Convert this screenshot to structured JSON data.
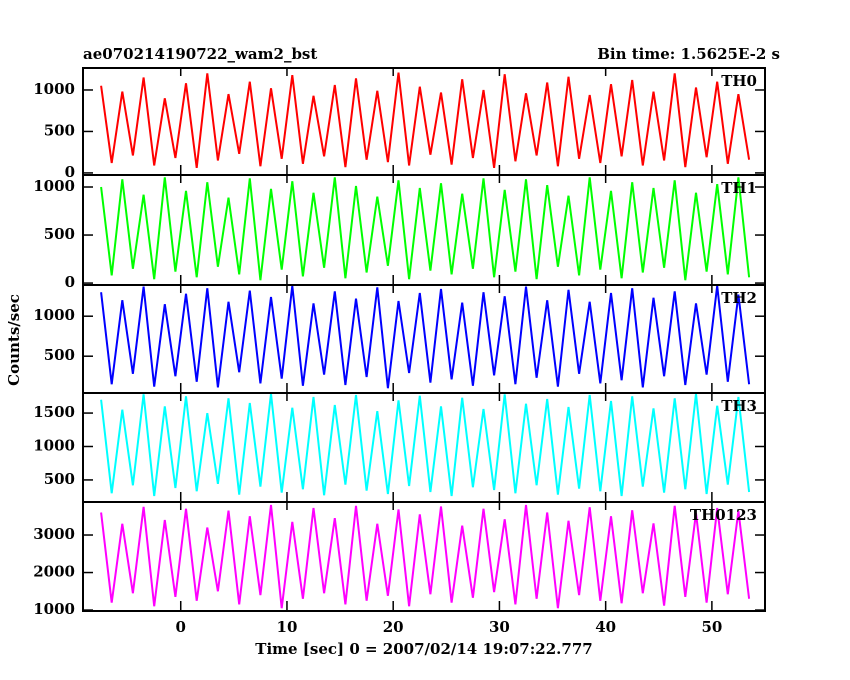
{
  "chart_data": {
    "type": "line",
    "title": "ae070214190722_wam2_bst",
    "subtitle": "Bin time: 1.5625E-2 s",
    "xlabel": "Time [sec] 0 = 2007/02/14 19:07:22.777",
    "ylabel": "Counts/sec",
    "xlim": [
      -9.2,
      55
    ],
    "xticks": [
      0,
      10,
      20,
      30,
      40,
      50
    ],
    "x": [
      -7.5,
      -6.5,
      -5.5,
      -4.5,
      -3.5,
      -2.5,
      -1.5,
      -0.5,
      0.5,
      1.5,
      2.5,
      3.5,
      4.5,
      5.5,
      6.5,
      7.5,
      8.5,
      9.5,
      10.5,
      11.5,
      12.5,
      13.5,
      14.5,
      15.5,
      16.5,
      17.5,
      18.5,
      19.5,
      20.5,
      21.5,
      22.5,
      23.5,
      24.5,
      25.5,
      26.5,
      27.5,
      28.5,
      29.5,
      30.5,
      31.5,
      32.5,
      33.5,
      34.5,
      35.5,
      36.5,
      37.5,
      38.5,
      39.5,
      40.5,
      41.5,
      42.5,
      43.5,
      44.5,
      45.5,
      46.5,
      47.5,
      48.5,
      49.5,
      50.5,
      51.5,
      52.5,
      53.5
    ],
    "series": [
      {
        "name": "TH0",
        "color": "#ff0000",
        "ylim": [
          -25,
          1265
        ],
        "yticks": [
          0,
          500,
          1000
        ],
        "values": [
          1050,
          120,
          980,
          210,
          1150,
          90,
          900,
          180,
          1080,
          60,
          1200,
          150,
          950,
          230,
          1100,
          80,
          1020,
          170,
          1180,
          110,
          930,
          200,
          1060,
          70,
          1140,
          160,
          990,
          130,
          1210,
          90,
          1040,
          220,
          970,
          100,
          1130,
          180,
          1000,
          60,
          1190,
          140,
          960,
          210,
          1090,
          80,
          1160,
          170,
          940,
          120,
          1070,
          200,
          1120,
          90,
          980,
          150,
          1200,
          70,
          1030,
          190,
          1100,
          110,
          950,
          160
        ]
      },
      {
        "name": "TH1",
        "color": "#00ff00",
        "ylim": [
          -20,
          1125
        ],
        "yticks": [
          0,
          500,
          1000
        ],
        "values": [
          1000,
          80,
          1080,
          150,
          920,
          40,
          1100,
          120,
          960,
          60,
          1050,
          170,
          890,
          90,
          1090,
          30,
          980,
          140,
          1060,
          70,
          940,
          160,
          1100,
          50,
          1010,
          110,
          900,
          180,
          1070,
          40,
          990,
          130,
          1040,
          90,
          930,
          150,
          1090,
          60,
          970,
          120,
          1080,
          40,
          1020,
          170,
          910,
          80,
          1100,
          140,
          960,
          50,
          1050,
          110,
          990,
          160,
          1070,
          30,
          940,
          120,
          1030,
          90,
          1100,
          60
        ]
      },
      {
        "name": "TH2",
        "color": "#0000ff",
        "ylim": [
          40,
          1390
        ],
        "yticks": [
          500,
          1000
        ],
        "values": [
          1300,
          150,
          1200,
          280,
          1370,
          120,
          1150,
          250,
          1280,
          180,
          1350,
          110,
          1180,
          300,
          1320,
          160,
          1240,
          220,
          1380,
          130,
          1160,
          270,
          1310,
          140,
          1220,
          240,
          1360,
          100,
          1190,
          290,
          1290,
          170,
          1340,
          210,
          1170,
          130,
          1300,
          260,
          1250,
          150,
          1370,
          230,
          1200,
          120,
          1330,
          280,
          1180,
          160,
          1290,
          200,
          1350,
          110,
          1230,
          250,
          1310,
          140,
          1160,
          270,
          1380,
          180,
          1270,
          150
        ]
      },
      {
        "name": "TH3",
        "color": "#00ffff",
        "ylim": [
          170,
          1800
        ],
        "yticks": [
          500,
          1000,
          1500
        ],
        "values": [
          1700,
          300,
          1550,
          420,
          1780,
          260,
          1600,
          380,
          1750,
          330,
          1500,
          440,
          1720,
          280,
          1650,
          400,
          1790,
          310,
          1580,
          360,
          1740,
          270,
          1620,
          430,
          1770,
          340,
          1530,
          290,
          1690,
          410,
          1760,
          320,
          1600,
          260,
          1730,
          390,
          1560,
          350,
          1780,
          300,
          1640,
          420,
          1710,
          280,
          1590,
          370,
          1770,
          330,
          1680,
          260,
          1750,
          400,
          1570,
          310,
          1720,
          360,
          1790,
          290,
          1610,
          430,
          1740,
          320
        ]
      },
      {
        "name": "TH0123",
        "color": "#ff00ff",
        "ylim": [
          975,
          3880
        ],
        "yticks": [
          1000,
          2000,
          3000
        ],
        "values": [
          3600,
          1200,
          3300,
          1450,
          3750,
          1100,
          3400,
          1350,
          3700,
          1250,
          3200,
          1500,
          3650,
          1150,
          3500,
          1400,
          3800,
          1050,
          3350,
          1300,
          3720,
          1450,
          3450,
          1150,
          3780,
          1250,
          3300,
          1380,
          3680,
          1100,
          3550,
          1420,
          3760,
          1200,
          3250,
          1330,
          3700,
          1480,
          3420,
          1150,
          3800,
          1300,
          3600,
          1050,
          3380,
          1400,
          3740,
          1250,
          3500,
          1180,
          3660,
          1450,
          3310,
          1120,
          3780,
          1350,
          3580,
          1200,
          3720,
          1420,
          3640,
          1300
        ]
      }
    ]
  }
}
